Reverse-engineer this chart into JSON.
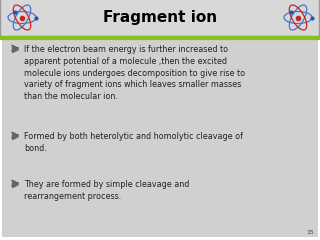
{
  "title": "Fragment ion",
  "title_fontsize": 11,
  "title_color": "#000000",
  "title_bg": "#d8d8d8",
  "header_border_color": "#999999",
  "body_bg": "#d0d0d0",
  "accent_line_color": "#88c020",
  "bullet_points": [
    "If the electron beam energy is further increased to\napparent potential of a molecule ,then the excited\nmolecule ions undergoes decomposition to give rise to\nvariety of fragment ions which leaves smaller masses\nthan the molecular ion.",
    "Formed by both heterolytic and homolytic cleavage of\nbond.",
    "They are formed by simple cleavage and\nrearrangement process."
  ],
  "bullet_fontsize": 5.8,
  "bullet_color": "#222222",
  "page_number": "15",
  "outer_bg": "#ffffff",
  "fig_width": 3.2,
  "fig_height": 2.4,
  "dpi": 100
}
